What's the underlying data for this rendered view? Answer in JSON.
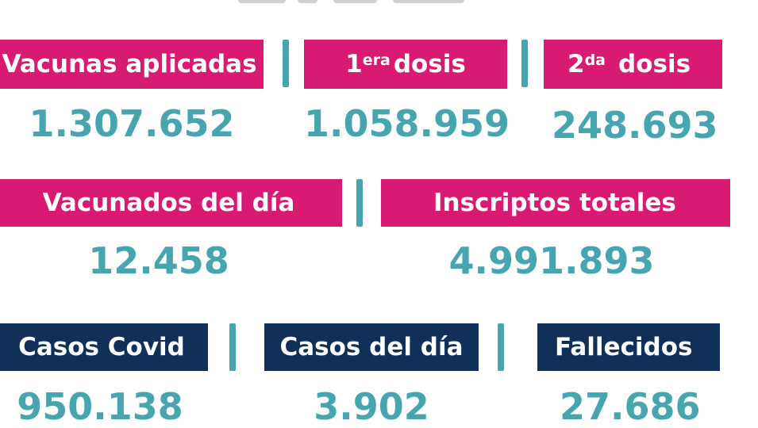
{
  "colors": {
    "pink": "#d91a73",
    "navy": "#10305a",
    "teal": "#47a5b0"
  },
  "vacunas": {
    "aplicadas": {
      "label": "Vacunas aplicadas",
      "value": "1.307.652"
    },
    "primera": {
      "label_num": "1",
      "label_sup": "era",
      "label_rest": "dosis",
      "value": "1.058.959"
    },
    "segunda": {
      "label_num": "2",
      "label_sup": "da",
      "label_rest": "dosis",
      "value": "248.693"
    }
  },
  "vacunados": {
    "dia": {
      "label": "Vacunados del día",
      "value": "12.458"
    },
    "inscriptos": {
      "label": "Inscriptos totales",
      "value": "4.991.893"
    }
  },
  "covid": {
    "casos": {
      "label": "Casos Covid",
      "value": "950.138"
    },
    "casos_dia": {
      "label": "Casos del día",
      "value": "3.902"
    },
    "fallecidos": {
      "label": "Fallecidos",
      "value": "27.686"
    }
  }
}
